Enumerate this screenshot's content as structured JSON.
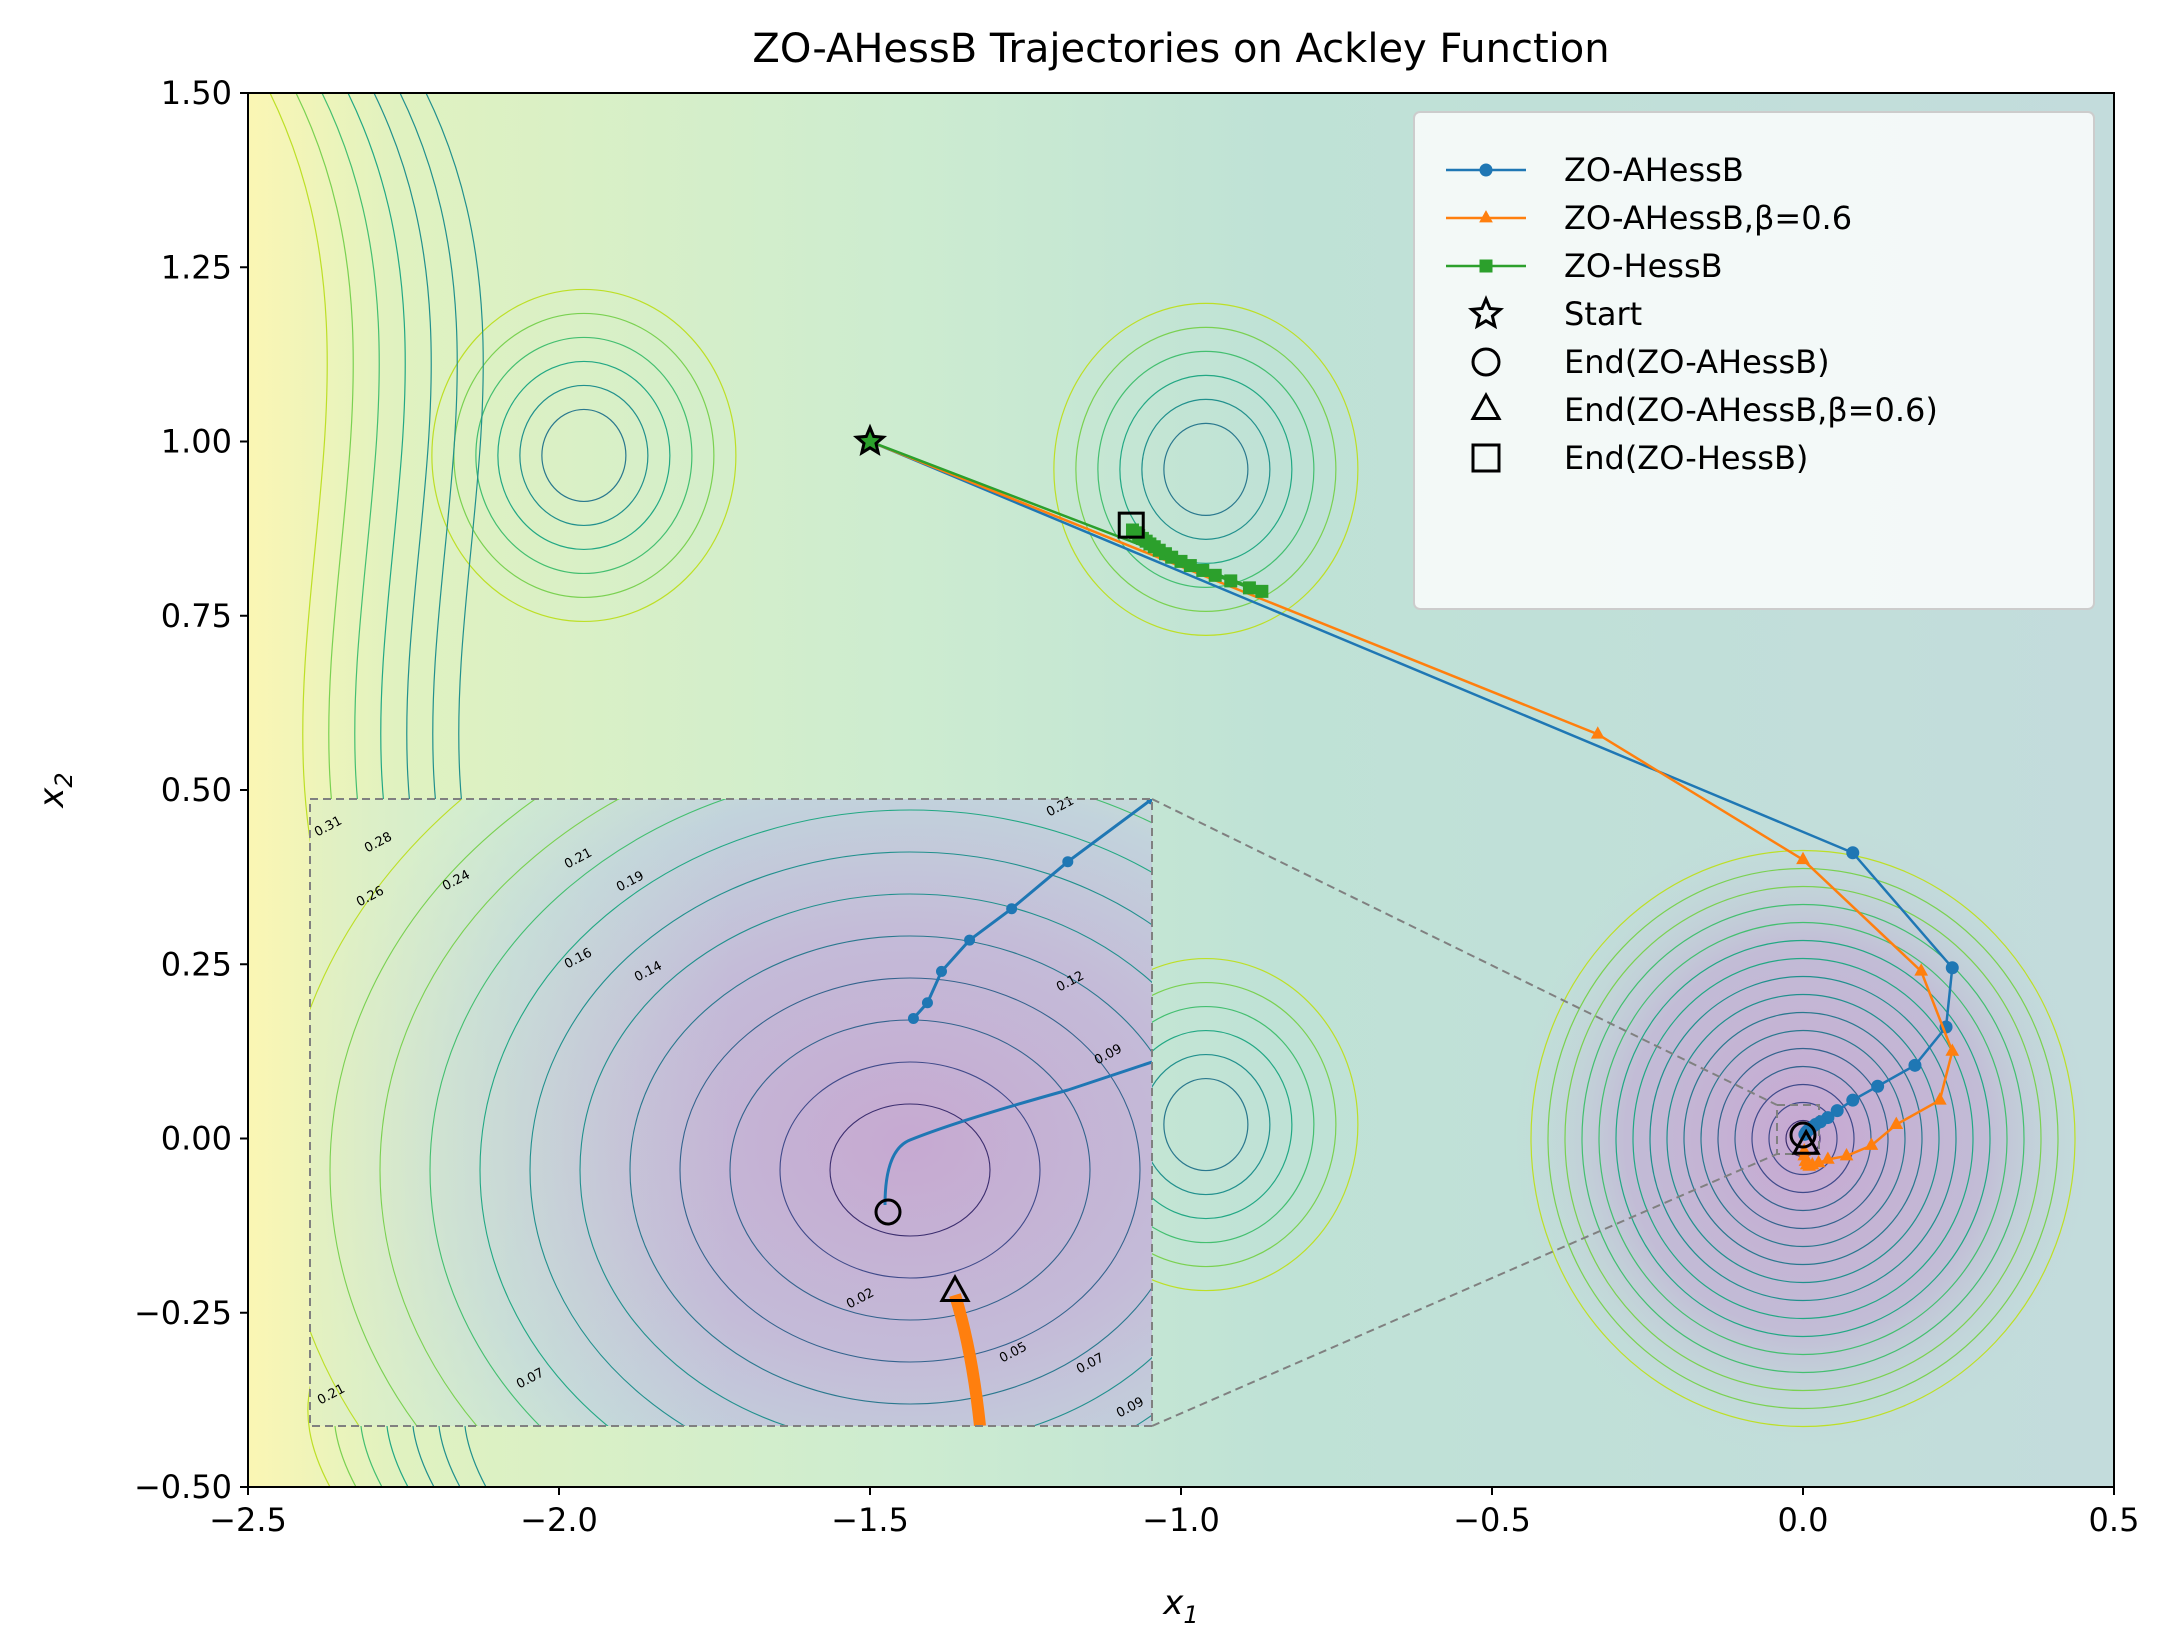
{
  "chart_data": {
    "type": "line",
    "title": "ZO-AHessB Trajectories on Ackley Function",
    "xlabel_base": "x",
    "xlabel_sub": "1",
    "ylabel_base": "x",
    "ylabel_sub": "2",
    "xlim": [
      -2.5,
      0.5
    ],
    "ylim": [
      -0.5,
      1.5
    ],
    "x_ticks": [
      -2.5,
      -2.0,
      -1.5,
      -1.0,
      -0.5,
      0.0,
      0.5
    ],
    "x_tick_labels": [
      "−2.5",
      "−2.0",
      "−1.5",
      "−1.0",
      "−0.5",
      "0.0",
      "0.5"
    ],
    "y_ticks": [
      -0.5,
      -0.25,
      0.0,
      0.25,
      0.5,
      0.75,
      1.0,
      1.25,
      1.5
    ],
    "y_tick_labels": [
      "−0.50",
      "−0.25",
      "0.00",
      "0.25",
      "0.50",
      "0.75",
      "1.00",
      "1.25",
      "1.50"
    ],
    "grid": false,
    "legend_placement": "upper right",
    "colormap": "viridis",
    "series": [
      {
        "name": "ZO-AHessB",
        "color": "#1f77b4",
        "marker": "circle",
        "x": [
          -1.5,
          0.08,
          0.24,
          0.23,
          0.18,
          0.12,
          0.08,
          0.055,
          0.04,
          0.028,
          0.02,
          0.014,
          0.01,
          0.007,
          0.005,
          0.004,
          0.003
        ],
        "y": [
          1.0,
          0.41,
          0.245,
          0.16,
          0.105,
          0.075,
          0.055,
          0.04,
          0.03,
          0.024,
          0.02,
          0.016,
          0.013,
          0.011,
          0.009,
          0.007,
          0.006
        ]
      },
      {
        "name": "ZO-AHessB,β=0.6",
        "color": "#ff7f0e",
        "marker": "triangle",
        "x": [
          -1.5,
          -0.33,
          0.0,
          0.19,
          0.24,
          0.22,
          0.15,
          0.11,
          0.07,
          0.04,
          0.025,
          0.015,
          0.01,
          0.006,
          0.004,
          0.002,
          0.002
        ],
        "y": [
          1.0,
          0.58,
          0.4,
          0.24,
          0.125,
          0.055,
          0.02,
          -0.01,
          -0.025,
          -0.03,
          -0.035,
          -0.038,
          -0.04,
          -0.038,
          -0.033,
          -0.025,
          -0.018
        ]
      },
      {
        "name": "ZO-HessB",
        "color": "#2ca02c",
        "marker": "square",
        "x": [
          -1.5,
          -0.87,
          -0.89,
          -0.92,
          -0.945,
          -0.965,
          -0.985,
          -1.0,
          -1.015,
          -1.025,
          -1.035,
          -1.043,
          -1.05,
          -1.056,
          -1.062,
          -1.068,
          -1.073,
          -1.078
        ],
        "y": [
          1.0,
          0.785,
          0.79,
          0.8,
          0.808,
          0.815,
          0.822,
          0.828,
          0.834,
          0.839,
          0.844,
          0.849,
          0.853,
          0.857,
          0.861,
          0.865,
          0.869,
          0.873
        ]
      }
    ],
    "markers": [
      {
        "name": "Start",
        "symbol": "star",
        "x": -1.5,
        "y": 1.0
      },
      {
        "name": "End(ZO-AHessB)",
        "symbol": "circle",
        "x": 0.0,
        "y": 0.005
      },
      {
        "name": "End(ZO-AHessB,β=0.6)",
        "symbol": "triangle",
        "x": 0.005,
        "y": -0.01
      },
      {
        "name": "End(ZO-HessB)",
        "symbol": "square",
        "x": -1.08,
        "y": 0.88
      }
    ],
    "inset": {
      "xlim": [
        -0.04,
        0.02
      ],
      "ylim": [
        -0.02,
        0.02
      ],
      "contour_labels": [
        "0.31",
        "0.28",
        "0.26",
        "0.24",
        "0.21",
        "0.19",
        "0.16",
        "0.14",
        "0.12",
        "0.09",
        "0.07",
        "0.05",
        "0.02",
        "0.07",
        "0.09",
        "0.21",
        "0.21"
      ]
    }
  }
}
